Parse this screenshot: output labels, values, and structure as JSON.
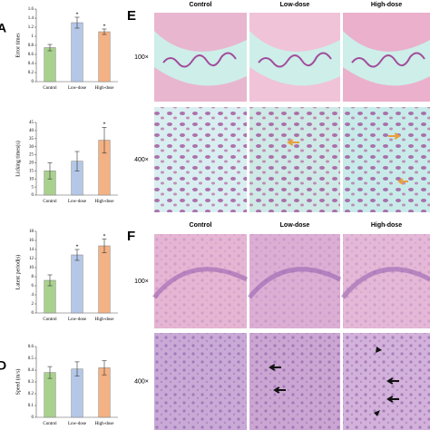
{
  "chart_data": [
    {
      "type": "bar",
      "panel": "A",
      "y_label": "Error times",
      "categories": [
        "Control",
        "Low-dose",
        "High-dose"
      ],
      "values": [
        0.75,
        1.3,
        1.1
      ],
      "errors": [
        0.07,
        0.12,
        0.06
      ],
      "significance": [
        null,
        "*",
        "*"
      ],
      "colors": [
        "#a9d18e",
        "#b4c7e7",
        "#f4b183"
      ],
      "ylim": [
        0,
        1.6
      ],
      "yticks": [
        0,
        0.2,
        0.4,
        0.6,
        0.8,
        1,
        1.2,
        1.4,
        1.6
      ]
    },
    {
      "type": "bar",
      "y_label": "Licking times(s)",
      "categories": [
        "Control",
        "Low-dose",
        "High-dose"
      ],
      "values": [
        15,
        21,
        34
      ],
      "errors": [
        5,
        6,
        8
      ],
      "significance": [
        null,
        null,
        "*"
      ],
      "colors": [
        "#a9d18e",
        "#b4c7e7",
        "#f4b183"
      ],
      "ylim": [
        0,
        45
      ],
      "yticks": [
        0,
        5,
        10,
        15,
        20,
        25,
        30,
        35,
        40,
        45
      ]
    },
    {
      "type": "bar",
      "y_label": "Latent period(s)",
      "categories": [
        "Control",
        "Low-dose",
        "High-dose"
      ],
      "values": [
        7.2,
        12.8,
        14.8
      ],
      "errors": [
        1.2,
        1.2,
        1.5
      ],
      "significance": [
        null,
        "*",
        "*"
      ],
      "colors": [
        "#a9d18e",
        "#b4c7e7",
        "#f4b183"
      ],
      "ylim": [
        0,
        18
      ],
      "yticks": [
        0,
        2,
        4,
        6,
        8,
        10,
        12,
        14,
        16,
        18
      ]
    },
    {
      "type": "bar",
      "panel": "D",
      "y_label": "Speed (m/s)",
      "categories": [
        "Control",
        "Low-dose",
        "High-dose"
      ],
      "values": [
        0.38,
        0.41,
        0.42
      ],
      "errors": [
        0.05,
        0.06,
        0.06
      ],
      "colors": [
        "#a9d18e",
        "#b4c7e7",
        "#f4b183"
      ],
      "ylim": [
        0,
        0.6
      ],
      "yticks": [
        0,
        0.1,
        0.2,
        0.3,
        0.4,
        0.5,
        0.6
      ]
    }
  ],
  "histology": [
    {
      "label": "E",
      "columns": [
        "Control",
        "Low-dose",
        "High-dose"
      ],
      "rows": [
        "100×",
        "400×"
      ]
    },
    {
      "label": "F",
      "columns": [
        "Control",
        "Low-dose",
        "High-dose"
      ],
      "rows": [
        "100×",
        "400×"
      ]
    }
  ]
}
